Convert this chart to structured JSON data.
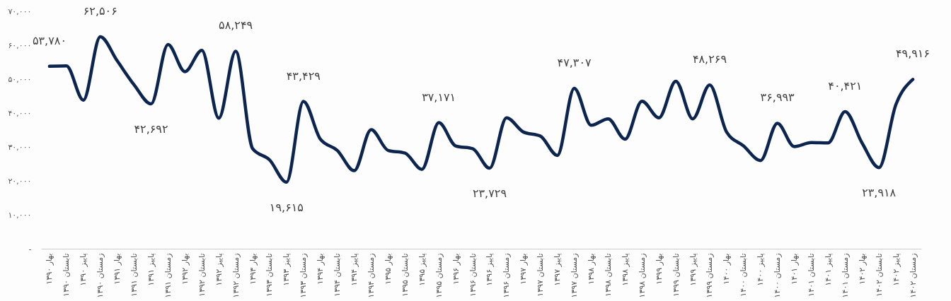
{
  "chart_data": {
    "type": "line",
    "categories": [
      "بهار ۱۳۹۰",
      "تابستان ۱۳۹۰",
      "پاییز ۱۳۹۰",
      "زمستان ۱۳۹۰",
      "بهار ۱۳۹۱",
      "تابستان ۱۳۹۱",
      "پاییز ۱۳۹۱",
      "زمستان ۱۳۹۱",
      "بهار ۱۳۹۲",
      "تابستان ۱۳۹۲",
      "پاییز ۱۳۹۲",
      "زمستان ۱۳۹۲",
      "بهار ۱۳۹۳",
      "تابستان ۱۳۹۳",
      "پاییز ۱۳۹۳",
      "زمستان ۱۳۹۳",
      "بهار ۱۳۹۴",
      "تابستان ۱۳۹۴",
      "پاییز ۱۳۹۴",
      "زمستان ۱۳۹۴",
      "بهار ۱۳۹۵",
      "تابستان ۱۳۹۵",
      "پاییز ۱۳۹۵",
      "زمستان ۱۳۹۵",
      "بهار ۱۳۹۶",
      "تابستان ۱۳۹۶",
      "پاییز ۱۳۹۶",
      "زمستان ۱۳۹۶",
      "بهار ۱۳۹۷",
      "تابستان ۱۳۹۷",
      "پاییز ۱۳۹۷",
      "زمستان ۱۳۹۷",
      "بهار ۱۳۹۸",
      "تابستان ۱۳۹۸",
      "پاییز ۱۳۹۸",
      "زمستان ۱۳۹۸",
      "بهار ۱۳۹۹",
      "تابستان ۱۳۹۹",
      "پاییز ۱۳۹۹",
      "زمستان ۱۳۹۹",
      "بهار ۱۴۰۰",
      "تابستان ۱۴۰۰",
      "پاییز ۱۴۰۰",
      "زمستان ۱۴۰۰",
      "بهار ۱۴۰۱",
      "تابستان ۱۴۰۱",
      "پاییز ۱۴۰۱",
      "زمستان ۱۴۰۱",
      "بهار ۱۴۰۲",
      "تابستان ۱۴۰۲",
      "پاییز ۱۴۰۲",
      "زمستان ۱۴۰۲"
    ],
    "series": [
      {
        "color": "#0b2550",
        "values": [
          53780,
          53900,
          43800,
          62506,
          55400,
          48300,
          42692,
          60200,
          52200,
          58500,
          38500,
          58249,
          29500,
          26200,
          19615,
          43429,
          32300,
          29000,
          23000,
          35100,
          29000,
          28200,
          23400,
          37171,
          30300,
          29500,
          23729,
          38600,
          34400,
          33200,
          27500,
          47307,
          36400,
          38300,
          32300,
          43500,
          38600,
          49400,
          38300,
          48269,
          34400,
          30300,
          26000,
          36993,
          30100,
          31300,
          31200,
          40421,
          31200,
          23918,
          42500,
          49916
        ],
        "value_labels": [
          "۵۳,۷۸۰",
          null,
          null,
          "۶۲,۵۰۶",
          null,
          null,
          "۴۲,۶۹۲",
          null,
          null,
          null,
          null,
          "۵۸,۲۴۹",
          null,
          null,
          "۱۹,۶۱۵",
          "۴۳,۴۲۹",
          null,
          null,
          null,
          null,
          null,
          null,
          null,
          "۳۷,۱۷۱",
          null,
          null,
          "۲۳,۷۲۹",
          null,
          null,
          null,
          null,
          "۴۷,۳۰۷",
          null,
          null,
          null,
          null,
          null,
          null,
          null,
          "۴۸,۲۶۹",
          null,
          null,
          null,
          "۳۶,۹۹۳",
          null,
          null,
          null,
          "۴۰,۴۲۱",
          null,
          "۲۳,۹۱۸",
          null,
          "۴۹,۹۱۶"
        ]
      }
    ],
    "ylim": [
      0,
      70000
    ],
    "yticks": [
      {
        "value": 0,
        "label": "-"
      },
      {
        "value": 10000,
        "label": "۱۰,۰۰۰"
      },
      {
        "value": 20000,
        "label": "۲۰,۰۰۰"
      },
      {
        "value": 30000,
        "label": "۳۰,۰۰۰"
      },
      {
        "value": 40000,
        "label": "۴۰,۰۰۰"
      },
      {
        "value": 50000,
        "label": "۵۰,۰۰۰"
      },
      {
        "value": 60000,
        "label": "۶۰,۰۰۰"
      },
      {
        "value": 70000,
        "label": "۷۰,۰۰۰"
      }
    ],
    "grid": false,
    "marker": "none",
    "line_style": "solid"
  }
}
